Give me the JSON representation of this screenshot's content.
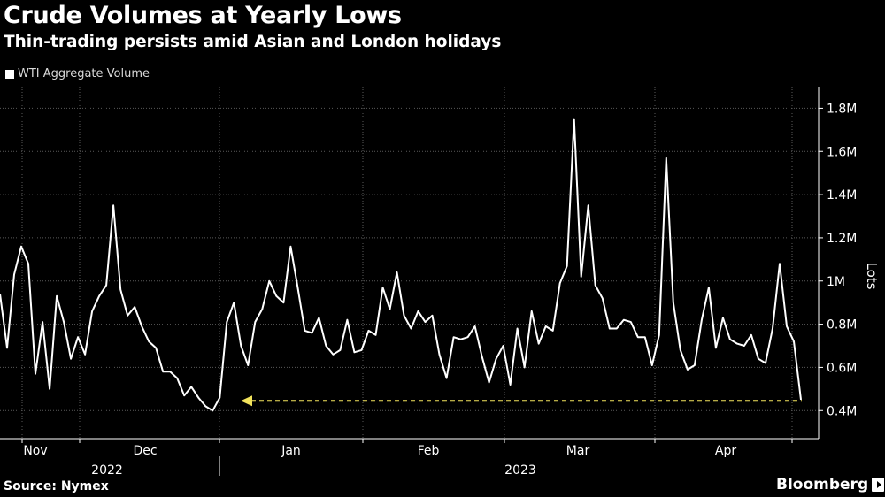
{
  "header": {
    "title": "Crude Volumes at Yearly Lows",
    "subtitle": "Thin-trading persists amid Asian and London holidays"
  },
  "footer": {
    "source": "Source: Nymex",
    "brand": "Bloomberg"
  },
  "colors": {
    "background": "#000000",
    "line": "#ffffff",
    "grid": "#5a5a5a",
    "annotation": "#f2e35c"
  },
  "chart_data": {
    "type": "line",
    "ylabel": "Lots",
    "ylim": [
      0.27,
      1.9
    ],
    "yticks": [
      {
        "value": 0.4,
        "label": "0.4M"
      },
      {
        "value": 0.6,
        "label": "0.6M"
      },
      {
        "value": 0.8,
        "label": "0.8M"
      },
      {
        "value": 1.0,
        "label": "1M"
      },
      {
        "value": 1.2,
        "label": "1.2M"
      },
      {
        "value": 1.4,
        "label": "1.4M"
      },
      {
        "value": 1.6,
        "label": "1.6M"
      },
      {
        "value": 1.8,
        "label": "1.8M"
      }
    ],
    "x_month_labels": [
      "Nov",
      "Dec",
      "Jan",
      "Feb",
      "Mar",
      "Apr"
    ],
    "x_year_labels": [
      "2022",
      "2023"
    ],
    "grid": true,
    "legend_position": "top-left",
    "series": [
      {
        "name": "WTI Aggregate Volume",
        "values": [
          0.94,
          0.69,
          1.03,
          1.16,
          1.08,
          0.57,
          0.81,
          0.5,
          0.93,
          0.81,
          0.64,
          0.74,
          0.66,
          0.86,
          0.93,
          0.98,
          1.35,
          0.96,
          0.84,
          0.88,
          0.79,
          0.72,
          0.69,
          0.58,
          0.58,
          0.55,
          0.47,
          0.51,
          0.46,
          0.42,
          0.4,
          0.46,
          0.81,
          0.9,
          0.7,
          0.61,
          0.81,
          0.87,
          1.0,
          0.93,
          0.9,
          1.16,
          0.97,
          0.77,
          0.76,
          0.83,
          0.7,
          0.66,
          0.68,
          0.82,
          0.67,
          0.68,
          0.77,
          0.75,
          0.97,
          0.87,
          1.04,
          0.84,
          0.78,
          0.86,
          0.81,
          0.84,
          0.66,
          0.55,
          0.74,
          0.73,
          0.74,
          0.79,
          0.65,
          0.53,
          0.64,
          0.7,
          0.52,
          0.78,
          0.6,
          0.86,
          0.71,
          0.79,
          0.77,
          0.99,
          1.07,
          1.75,
          1.02,
          1.35,
          0.98,
          0.92,
          0.78,
          0.78,
          0.82,
          0.81,
          0.74,
          0.74,
          0.61,
          0.75,
          1.57,
          0.9,
          0.68,
          0.59,
          0.61,
          0.82,
          0.97,
          0.69,
          0.83,
          0.73,
          0.71,
          0.7,
          0.75,
          0.64,
          0.62,
          0.78,
          1.08,
          0.79,
          0.72,
          0.45
        ]
      }
    ],
    "annotations": [
      {
        "type": "dashed-arrow",
        "value": 0.445
      }
    ]
  }
}
